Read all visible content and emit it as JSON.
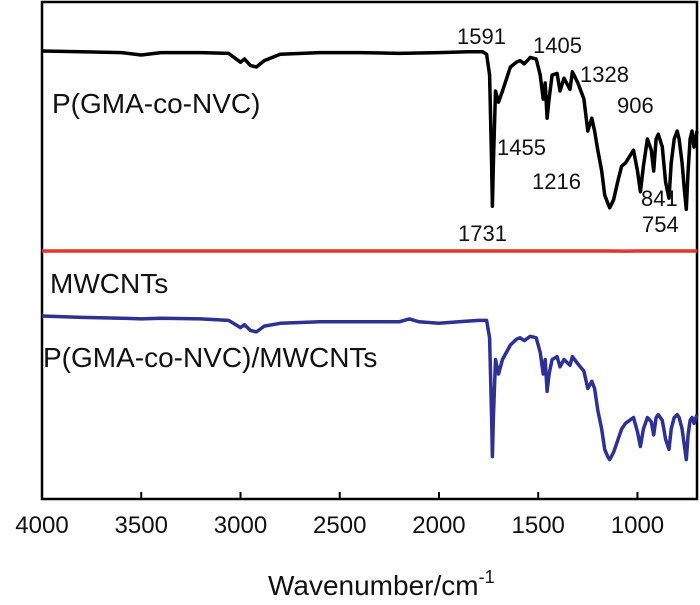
{
  "chart_data": {
    "type": "line",
    "title": "",
    "xlabel": "Wavenumber/cm",
    "xlabel_superscript": "-1",
    "ylabel": "",
    "xlim": [
      4000,
      700
    ],
    "x_reversed": true,
    "y_ticks_shown": false,
    "grid": false,
    "xticks": [
      4000,
      3500,
      3000,
      2500,
      2000,
      1500,
      1000
    ],
    "series": [
      {
        "name": "P(GMA-co-NVC)",
        "color": "#000000",
        "offset": 0.0,
        "points": [
          [
            4000,
            0.0
          ],
          [
            3800,
            0.005
          ],
          [
            3600,
            0.01
          ],
          [
            3500,
            0.025
          ],
          [
            3400,
            0.01
          ],
          [
            3200,
            0.01
          ],
          [
            3060,
            0.015
          ],
          [
            3000,
            0.07
          ],
          [
            2980,
            0.05
          ],
          [
            2950,
            0.09
          ],
          [
            2920,
            0.1
          ],
          [
            2880,
            0.06
          ],
          [
            2800,
            0.02
          ],
          [
            2600,
            0.01
          ],
          [
            2400,
            0.01
          ],
          [
            2200,
            0.015
          ],
          [
            2000,
            0.01
          ],
          [
            1850,
            0.005
          ],
          [
            1780,
            0.005
          ],
          [
            1760,
            0.02
          ],
          [
            1745,
            0.15
          ],
          [
            1735,
            0.7
          ],
          [
            1731,
            0.97
          ],
          [
            1726,
            0.7
          ],
          [
            1715,
            0.25
          ],
          [
            1700,
            0.32
          ],
          [
            1680,
            0.25
          ],
          [
            1640,
            0.1
          ],
          [
            1610,
            0.07
          ],
          [
            1591,
            0.06
          ],
          [
            1570,
            0.08
          ],
          [
            1540,
            0.04
          ],
          [
            1510,
            0.05
          ],
          [
            1490,
            0.15
          ],
          [
            1475,
            0.3
          ],
          [
            1465,
            0.2
          ],
          [
            1455,
            0.42
          ],
          [
            1445,
            0.3
          ],
          [
            1430,
            0.15
          ],
          [
            1405,
            0.14
          ],
          [
            1390,
            0.25
          ],
          [
            1370,
            0.17
          ],
          [
            1340,
            0.24
          ],
          [
            1328,
            0.13
          ],
          [
            1300,
            0.2
          ],
          [
            1270,
            0.3
          ],
          [
            1250,
            0.5
          ],
          [
            1230,
            0.42
          ],
          [
            1216,
            0.5
          ],
          [
            1200,
            0.62
          ],
          [
            1180,
            0.75
          ],
          [
            1165,
            0.9
          ],
          [
            1150,
            0.95
          ],
          [
            1140,
            0.98
          ],
          [
            1120,
            0.93
          ],
          [
            1100,
            0.82
          ],
          [
            1080,
            0.72
          ],
          [
            1060,
            0.7
          ],
          [
            1040,
            0.66
          ],
          [
            1020,
            0.62
          ],
          [
            1000,
            0.75
          ],
          [
            985,
            0.88
          ],
          [
            970,
            0.72
          ],
          [
            950,
            0.55
          ],
          [
            930,
            0.62
          ],
          [
            918,
            0.75
          ],
          [
            906,
            0.55
          ],
          [
            895,
            0.52
          ],
          [
            875,
            0.6
          ],
          [
            858,
            0.82
          ],
          [
            841,
            0.92
          ],
          [
            830,
            0.7
          ],
          [
            815,
            0.55
          ],
          [
            800,
            0.5
          ],
          [
            790,
            0.55
          ],
          [
            775,
            0.7
          ],
          [
            765,
            0.85
          ],
          [
            754,
            0.99
          ],
          [
            745,
            0.75
          ],
          [
            735,
            0.55
          ],
          [
            725,
            0.5
          ],
          [
            715,
            0.6
          ],
          [
            700,
            0.5
          ]
        ]
      },
      {
        "name": "MWCNTs",
        "color": "#e3342f",
        "offset": 0.0,
        "points": [
          [
            4000,
            0.0
          ],
          [
            3600,
            0.0
          ],
          [
            3400,
            0.005
          ],
          [
            3000,
            0.0
          ],
          [
            2600,
            0.0
          ],
          [
            2200,
            0.005
          ],
          [
            1800,
            0.0
          ],
          [
            1500,
            0.0
          ],
          [
            1300,
            0.0
          ],
          [
            1150,
            0.005
          ],
          [
            1050,
            0.02
          ],
          [
            1000,
            0.005
          ],
          [
            900,
            0.005
          ],
          [
            800,
            0.0
          ],
          [
            700,
            0.0
          ]
        ]
      },
      {
        "name": "P(GMA-co-NVC)/MWCNTs",
        "color": "#2e3192",
        "offset": 0.0,
        "points": [
          [
            4000,
            0.0
          ],
          [
            3800,
            0.01
          ],
          [
            3600,
            0.015
          ],
          [
            3500,
            0.02
          ],
          [
            3400,
            0.015
          ],
          [
            3200,
            0.02
          ],
          [
            3060,
            0.03
          ],
          [
            3000,
            0.08
          ],
          [
            2980,
            0.06
          ],
          [
            2950,
            0.1
          ],
          [
            2920,
            0.11
          ],
          [
            2880,
            0.07
          ],
          [
            2800,
            0.05
          ],
          [
            2600,
            0.04
          ],
          [
            2400,
            0.04
          ],
          [
            2200,
            0.04
          ],
          [
            2150,
            0.02
          ],
          [
            2100,
            0.04
          ],
          [
            2000,
            0.05
          ],
          [
            1900,
            0.04
          ],
          [
            1800,
            0.03
          ],
          [
            1760,
            0.03
          ],
          [
            1745,
            0.15
          ],
          [
            1735,
            0.7
          ],
          [
            1731,
            0.97
          ],
          [
            1726,
            0.7
          ],
          [
            1715,
            0.3
          ],
          [
            1700,
            0.4
          ],
          [
            1680,
            0.3
          ],
          [
            1640,
            0.2
          ],
          [
            1610,
            0.16
          ],
          [
            1591,
            0.15
          ],
          [
            1570,
            0.17
          ],
          [
            1540,
            0.14
          ],
          [
            1510,
            0.15
          ],
          [
            1490,
            0.25
          ],
          [
            1475,
            0.4
          ],
          [
            1465,
            0.3
          ],
          [
            1455,
            0.52
          ],
          [
            1445,
            0.4
          ],
          [
            1430,
            0.3
          ],
          [
            1405,
            0.28
          ],
          [
            1390,
            0.35
          ],
          [
            1370,
            0.3
          ],
          [
            1340,
            0.34
          ],
          [
            1328,
            0.28
          ],
          [
            1300,
            0.33
          ],
          [
            1270,
            0.38
          ],
          [
            1250,
            0.5
          ],
          [
            1230,
            0.45
          ],
          [
            1216,
            0.5
          ],
          [
            1200,
            0.65
          ],
          [
            1180,
            0.78
          ],
          [
            1165,
            0.92
          ],
          [
            1150,
            0.97
          ],
          [
            1140,
            0.99
          ],
          [
            1120,
            0.94
          ],
          [
            1100,
            0.86
          ],
          [
            1080,
            0.78
          ],
          [
            1060,
            0.74
          ],
          [
            1040,
            0.72
          ],
          [
            1020,
            0.7
          ],
          [
            1000,
            0.8
          ],
          [
            985,
            0.9
          ],
          [
            970,
            0.78
          ],
          [
            950,
            0.7
          ],
          [
            930,
            0.73
          ],
          [
            918,
            0.82
          ],
          [
            906,
            0.7
          ],
          [
            895,
            0.68
          ],
          [
            875,
            0.72
          ],
          [
            858,
            0.85
          ],
          [
            841,
            0.92
          ],
          [
            830,
            0.78
          ],
          [
            815,
            0.7
          ],
          [
            800,
            0.68
          ],
          [
            790,
            0.7
          ],
          [
            775,
            0.78
          ],
          [
            765,
            0.88
          ],
          [
            754,
            0.99
          ],
          [
            745,
            0.82
          ],
          [
            735,
            0.72
          ],
          [
            725,
            0.7
          ],
          [
            715,
            0.74
          ],
          [
            700,
            0.68
          ]
        ]
      }
    ],
    "annotations": [
      {
        "text": "1591",
        "series": 0
      },
      {
        "text": "1405",
        "series": 0
      },
      {
        "text": "1328",
        "series": 0
      },
      {
        "text": "906",
        "series": 0
      },
      {
        "text": "1455",
        "series": 0
      },
      {
        "text": "1216",
        "series": 0
      },
      {
        "text": "841",
        "series": 0
      },
      {
        "text": "1731",
        "series": 0
      },
      {
        "text": "754",
        "series": 0
      }
    ]
  }
}
